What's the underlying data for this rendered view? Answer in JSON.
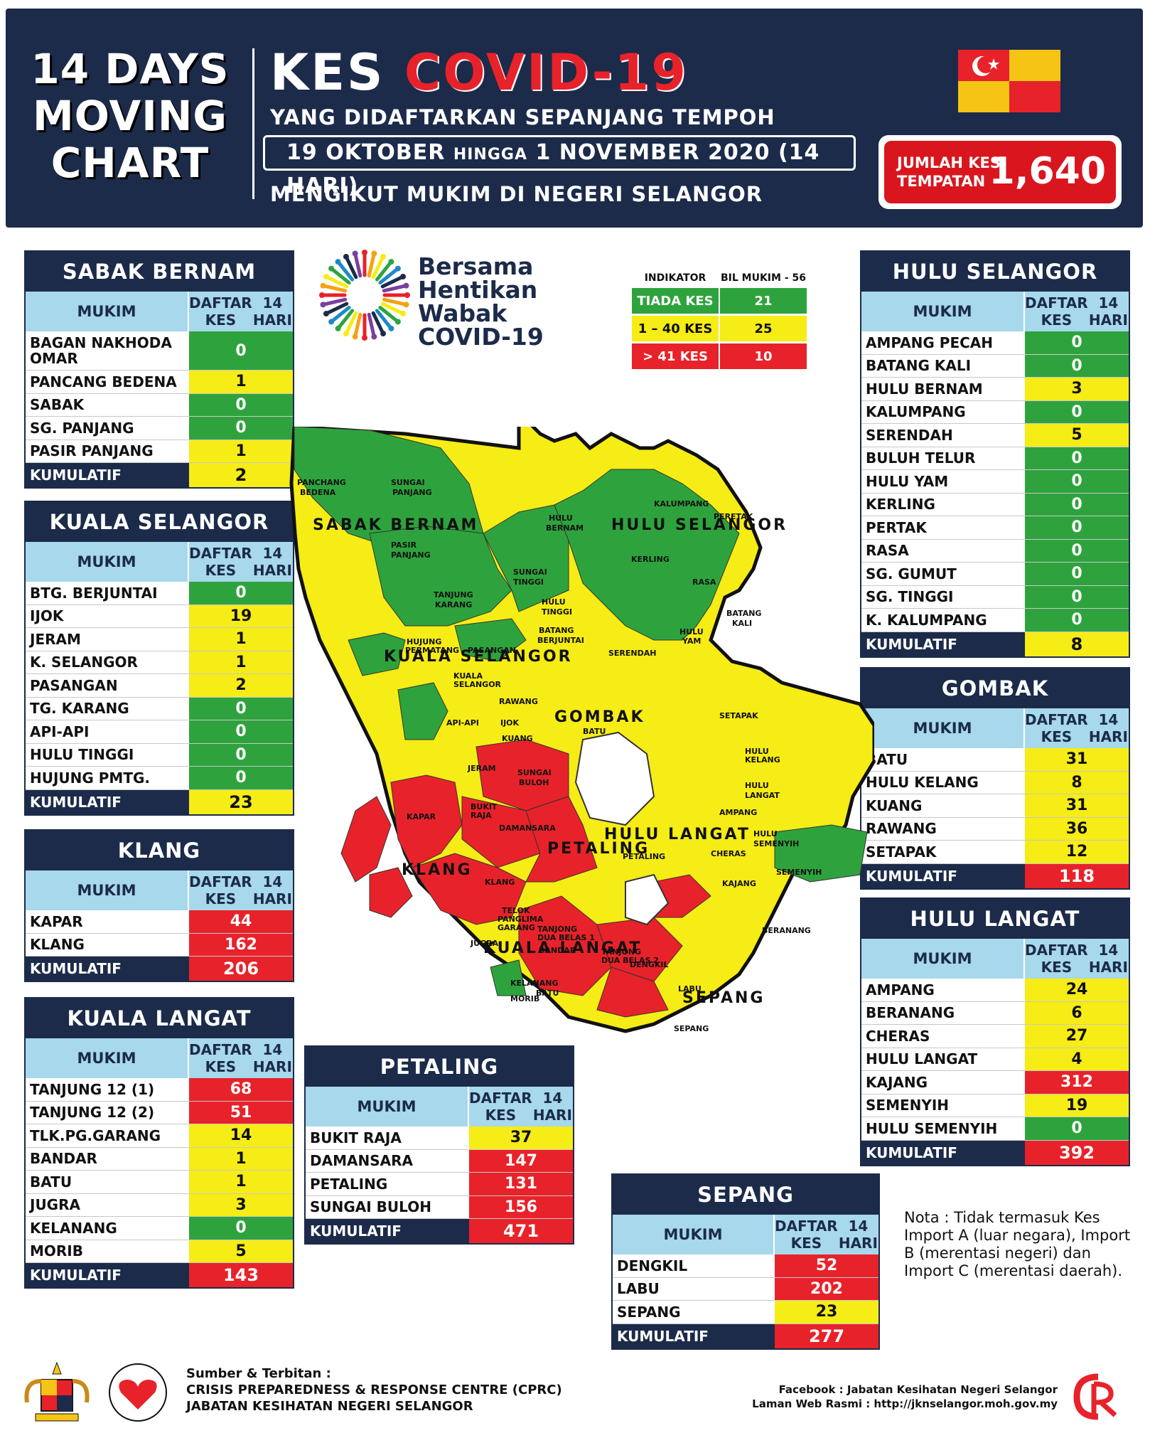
{
  "header": {
    "left_line1": "14 DAYS",
    "left_line2": "MOVING",
    "left_line3": "CHART",
    "kes": "KES",
    "covid": "COVID-19",
    "subtitle1": "YANG DIDAFTARKAN SEPANJANG TEMPOH",
    "date_from": "19 OKTOBER",
    "date_hingga": "HINGGA",
    "date_to": "1 NOVEMBER 2020 (14 HARI)",
    "subtitle2": "MENGIKUT MUKIM DI NEGERI SELANGOR",
    "jumlah_label_1": "JUMLAH KES",
    "jumlah_label_2": "TEMPATAN",
    "jumlah_value": "1,640"
  },
  "colors": {
    "green": "#2ea33d",
    "yellow": "#f6ec16",
    "red": "#e8222a",
    "navy": "#1c2b4a",
    "lightblue": "#a7d8ec"
  },
  "logo": {
    "line1": "Bersama",
    "line2": "Hentikan",
    "line3": "Wabak",
    "line4": "COVID-19"
  },
  "indicator": {
    "col1": "INDIKATOR",
    "col2": "BIL MUKIM - 56",
    "rows": [
      {
        "label": "TIADA KES",
        "count": "21",
        "level": "g"
      },
      {
        "label": "1 – 40 KES",
        "count": "25",
        "level": "y"
      },
      {
        "label": "> 41 KES",
        "count": "10",
        "level": "r"
      }
    ]
  },
  "table_headers": {
    "mukim": "MUKIM",
    "daftar_1": "DAFTAR KES",
    "daftar_2": "14 HARI",
    "kumulatif": "KUMULATIF"
  },
  "districts": {
    "sabak_bernam": {
      "title": "SABAK BERNAM",
      "rows": [
        {
          "name": "BAGAN NAKHODA OMAR",
          "value": "0",
          "level": "g",
          "tall": true
        },
        {
          "name": "PANCANG BEDENA",
          "value": "1",
          "level": "y"
        },
        {
          "name": "SABAK",
          "value": "0",
          "level": "g"
        },
        {
          "name": "SG. PANJANG",
          "value": "0",
          "level": "g"
        },
        {
          "name": "PASIR PANJANG",
          "value": "1",
          "level": "y"
        }
      ],
      "total": "2",
      "total_level": "y"
    },
    "kuala_selangor": {
      "title": "KUALA SELANGOR",
      "rows": [
        {
          "name": "BTG. BERJUNTAI",
          "value": "0",
          "level": "g"
        },
        {
          "name": "IJOK",
          "value": "19",
          "level": "y"
        },
        {
          "name": "JERAM",
          "value": "1",
          "level": "y"
        },
        {
          "name": "K. SELANGOR",
          "value": "1",
          "level": "y"
        },
        {
          "name": "PASANGAN",
          "value": "2",
          "level": "y"
        },
        {
          "name": "TG. KARANG",
          "value": "0",
          "level": "g"
        },
        {
          "name": "API-API",
          "value": "0",
          "level": "g"
        },
        {
          "name": "HULU TINGGI",
          "value": "0",
          "level": "g"
        },
        {
          "name": "HUJUNG PMTG.",
          "value": "0",
          "level": "g"
        }
      ],
      "total": "23",
      "total_level": "y"
    },
    "klang": {
      "title": "KLANG",
      "rows": [
        {
          "name": "KAPAR",
          "value": "44",
          "level": "r"
        },
        {
          "name": "KLANG",
          "value": "162",
          "level": "r"
        }
      ],
      "total": "206",
      "total_level": "r"
    },
    "kuala_langat": {
      "title": "KUALA LANGAT",
      "rows": [
        {
          "name": "TANJUNG 12 (1)",
          "value": "68",
          "level": "r"
        },
        {
          "name": "TANJUNG 12 (2)",
          "value": "51",
          "level": "r"
        },
        {
          "name": "TLK.PG.GARANG",
          "value": "14",
          "level": "y"
        },
        {
          "name": "BANDAR",
          "value": "1",
          "level": "y"
        },
        {
          "name": "BATU",
          "value": "1",
          "level": "y"
        },
        {
          "name": "JUGRA",
          "value": "3",
          "level": "y"
        },
        {
          "name": "KELANANG",
          "value": "0",
          "level": "g"
        },
        {
          "name": "MORIB",
          "value": "5",
          "level": "y"
        }
      ],
      "total": "143",
      "total_level": "r"
    },
    "petaling": {
      "title": "PETALING",
      "rows": [
        {
          "name": "BUKIT RAJA",
          "value": "37",
          "level": "y"
        },
        {
          "name": "DAMANSARA",
          "value": "147",
          "level": "r"
        },
        {
          "name": "PETALING",
          "value": "131",
          "level": "r"
        },
        {
          "name": "SUNGAI BULOH",
          "value": "156",
          "level": "r"
        }
      ],
      "total": "471",
      "total_level": "r"
    },
    "sepang": {
      "title": "SEPANG",
      "rows": [
        {
          "name": "DENGKIL",
          "value": "52",
          "level": "r"
        },
        {
          "name": "LABU",
          "value": "202",
          "level": "r"
        },
        {
          "name": "SEPANG",
          "value": "23",
          "level": "y"
        }
      ],
      "total": "277",
      "total_level": "r"
    },
    "hulu_selangor": {
      "title": "HULU SELANGOR",
      "rows": [
        {
          "name": "AMPANG PECAH",
          "value": "0",
          "level": "g"
        },
        {
          "name": "BATANG KALI",
          "value": "0",
          "level": "g"
        },
        {
          "name": "HULU BERNAM",
          "value": "3",
          "level": "y"
        },
        {
          "name": "KALUMPANG",
          "value": "0",
          "level": "g"
        },
        {
          "name": "SERENDAH",
          "value": "5",
          "level": "y"
        },
        {
          "name": "BULUH TELUR",
          "value": "0",
          "level": "g"
        },
        {
          "name": "HULU YAM",
          "value": "0",
          "level": "g"
        },
        {
          "name": "KERLING",
          "value": "0",
          "level": "g"
        },
        {
          "name": "PERTAK",
          "value": "0",
          "level": "g"
        },
        {
          "name": "RASA",
          "value": "0",
          "level": "g"
        },
        {
          "name": "SG. GUMUT",
          "value": "0",
          "level": "g"
        },
        {
          "name": "SG. TINGGI",
          "value": "0",
          "level": "g"
        },
        {
          "name": "K. KALUMPANG",
          "value": "0",
          "level": "g"
        }
      ],
      "total": "8",
      "total_level": "y"
    },
    "gombak": {
      "title": "GOMBAK",
      "rows": [
        {
          "name": "BATU",
          "value": "31",
          "level": "y"
        },
        {
          "name": "HULU KELANG",
          "value": "8",
          "level": "y"
        },
        {
          "name": "KUANG",
          "value": "31",
          "level": "y"
        },
        {
          "name": "RAWANG",
          "value": "36",
          "level": "y"
        },
        {
          "name": "SETAPAK",
          "value": "12",
          "level": "y"
        }
      ],
      "total": "118",
      "total_level": "r"
    },
    "hulu_langat": {
      "title": "HULU LANGAT",
      "rows": [
        {
          "name": "AMPANG",
          "value": "24",
          "level": "y"
        },
        {
          "name": "BERANANG",
          "value": "6",
          "level": "y"
        },
        {
          "name": "CHERAS",
          "value": "27",
          "level": "y"
        },
        {
          "name": "HULU LANGAT",
          "value": "4",
          "level": "y"
        },
        {
          "name": "KAJANG",
          "value": "312",
          "level": "r"
        },
        {
          "name": "SEMENYIH",
          "value": "19",
          "level": "y"
        },
        {
          "name": "HULU SEMENYIH",
          "value": "0",
          "level": "g"
        }
      ],
      "total": "392",
      "total_level": "r"
    }
  },
  "map_labels": {
    "districts": [
      "SABAK BERNAM",
      "HULU SELANGOR",
      "KUALA SELANGOR",
      "GOMBAK",
      "HULU LANGAT",
      "KLANG",
      "PETALING",
      "KUALA LANGAT",
      "SEPANG"
    ],
    "mukims": [
      "PANCHANG",
      "BEDENA",
      "SUNGAI",
      "PANJANG",
      "PASIR",
      "PANJANG",
      "HULU",
      "BERNAM",
      "KALUMPANG",
      "TANJUNG",
      "KARANG",
      "SUNGAI",
      "TINGGI",
      "KERLING",
      "PERETAK",
      "RASA",
      "HULU",
      "TINGGI",
      "BATANG",
      "BERJUNTAI",
      "HUJUNG",
      "PERMATANG",
      "PASANGAN",
      "SERENDAH",
      "HULU",
      "YAM",
      "BATANG",
      "KALI",
      "KUALA",
      "SELANGOR",
      "API-API",
      "IJOK",
      "RAWANG",
      "KUANG",
      "BATU",
      "SETAPAK",
      "HULU",
      "KELANG",
      "JERAM",
      "SUNGAI",
      "BULOH",
      "HULU",
      "LANGAT",
      "KAPAR",
      "BUKIT",
      "RAJA",
      "DAMANSARA",
      "AMPANG",
      "KLANG",
      "PETALING",
      "CHERAS",
      "HULU",
      "SEMENYIH",
      "SEMENYIH",
      "KAJANG",
      "TELOK",
      "PANGLIMA",
      "GARANG",
      "TANJONG",
      "DUA BELAS 1",
      "JUGRA",
      "BANDAR",
      "TANJONG",
      "DUA BELAS 2",
      "DENGKIL",
      "BERANANG",
      "KELANANG",
      "MORIB",
      "LABU",
      "BATU",
      "SEPANG"
    ]
  },
  "nota": "Nota : Tidak termasuk Kes Import A (luar negara), Import B (merentasi negeri) dan Import C (merentasi daerah).",
  "footer": {
    "src_1": "Sumber & Terbitan :",
    "src_2": "CRISIS PREPAREDNESS & RESPONSE CENTRE (CPRC)",
    "src_3": "JABATAN KESIHATAN NEGERI SELANGOR",
    "fb": "Facebook : Jabatan Kesihatan Negeri Selangor",
    "web": "Laman Web Rasmi : http://jknselangor.moh.gov.my"
  }
}
